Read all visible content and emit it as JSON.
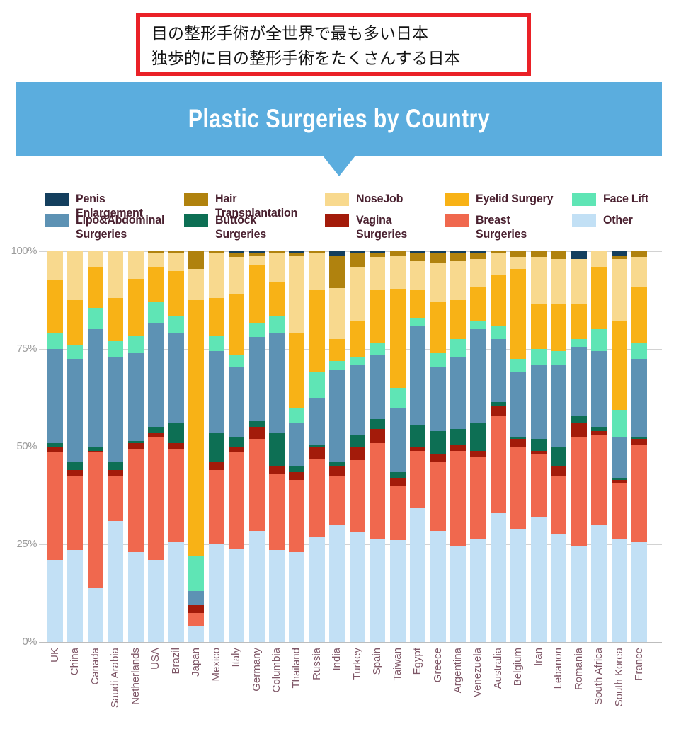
{
  "annotation": {
    "line1": "目の整形手術が全世界で最も多い日本",
    "line2": "独歩的に目の整形手術をたくさんする日本"
  },
  "header": {
    "title": "Plastic Surgeries by Country"
  },
  "colors": {
    "banner_blue": "#5badde",
    "annotation_red": "#ea2127",
    "legend_text": "#4a2130",
    "axis_tick_text": "#9b9b9b",
    "country_label_text": "#7e5666",
    "gridline": "#d2d2d2"
  },
  "legend": {
    "rows": [
      [
        "Penis Enlargement",
        "Hair Transplantation",
        "NoseJob",
        "Eyelid Surgery",
        "Face Lift"
      ],
      [
        "Lipo&Abdominal Surgeries",
        "Buttock Surgeries",
        "Vagina Surgeries",
        "Breast Surgeries",
        "Other"
      ]
    ]
  },
  "chart_data": {
    "type": "bar",
    "subtype": "stacked-100-percent",
    "title": "Plastic Surgeries by Country",
    "xlabel": "",
    "ylabel": "",
    "ylim": [
      0,
      100
    ],
    "grid": true,
    "legend_position": "top",
    "y_ticks": [
      "0%",
      "25%",
      "50%",
      "75%",
      "100%"
    ],
    "y_tick_values": [
      0,
      25,
      50,
      75,
      100
    ],
    "categories": [
      "UK",
      "China",
      "Canada",
      "Saudi Arabia",
      "Netherlands",
      "USA",
      "Brazil",
      "Japan",
      "Mexico",
      "Italy",
      "Germany",
      "Columbia",
      "Thailand",
      "Russia",
      "India",
      "Turkey",
      "Spain",
      "Taiwan",
      "Egypt",
      "Greece",
      "Argentina",
      "Venezuela",
      "Australia",
      "Belgium",
      "Iran",
      "Lebanon",
      "Romania",
      "South Africa",
      "South Korea",
      "France"
    ],
    "stack_order_note": "series listed bottom-to-top of each bar; values are percent of total",
    "series": [
      {
        "name": "Other",
        "color": "#c2e0f5",
        "values": [
          21,
          23.5,
          14,
          31,
          23,
          21,
          25.5,
          4,
          25,
          24,
          28.5,
          23.5,
          23,
          27,
          30,
          28,
          26.5,
          26,
          34.5,
          28.5,
          24.5,
          26.5,
          33,
          29,
          32,
          27.5,
          24.5,
          30,
          26.5,
          25.5
        ]
      },
      {
        "name": "Breast Surgeries",
        "color": "#f0684e",
        "values": [
          27.5,
          19,
          34.5,
          11.5,
          26.5,
          31.5,
          24,
          3.5,
          19,
          24.5,
          23.5,
          19.5,
          18.5,
          20,
          12.5,
          18.5,
          24.5,
          14,
          14.5,
          17.5,
          24.5,
          21,
          25,
          21,
          16,
          15,
          28,
          23,
          14,
          25
        ]
      },
      {
        "name": "Vagina Surgeries",
        "color": "#a31b0a",
        "values": [
          1.5,
          1.5,
          0.5,
          1.5,
          1.5,
          1,
          1.5,
          2,
          2,
          1.5,
          3,
          2,
          2,
          3,
          2.5,
          3.5,
          3.5,
          2,
          1,
          2,
          1.5,
          1.5,
          2.5,
          2,
          1,
          2.5,
          3.5,
          1,
          1,
          1.5
        ]
      },
      {
        "name": "Buttock Surgeries",
        "color": "#0d6f54",
        "values": [
          1,
          2,
          1,
          2,
          0.5,
          1.5,
          5,
          0,
          7.5,
          2.5,
          1.5,
          8.5,
          1.5,
          0.5,
          1,
          3,
          2.5,
          1.5,
          5.5,
          6,
          4,
          7,
          1,
          0.5,
          3,
          5,
          2,
          1,
          0.5,
          0.5
        ]
      },
      {
        "name": "Lipo&Abdominal Surgeries",
        "color": "#5d92b4",
        "values": [
          24,
          26.5,
          30,
          27,
          22.5,
          26.5,
          23,
          3.5,
          21,
          18,
          21.5,
          25.5,
          11,
          12,
          23.5,
          18,
          16.5,
          16.5,
          25.5,
          16.5,
          18.5,
          24,
          16,
          16.5,
          19,
          21,
          17.5,
          19.5,
          10.5,
          20
        ]
      },
      {
        "name": "Face Lift",
        "color": "#5fe5b5",
        "values": [
          4,
          3.5,
          5.5,
          4,
          4.5,
          5.5,
          4.5,
          9,
          4,
          3,
          3.5,
          4.5,
          4,
          6.5,
          2.5,
          2,
          3,
          5,
          2,
          3.5,
          4.5,
          2,
          3.5,
          3.5,
          4,
          3.5,
          2,
          5.5,
          7,
          4
        ]
      },
      {
        "name": "Eyelid Surgery",
        "color": "#f8b216",
        "values": [
          13.5,
          11.5,
          10.5,
          11,
          14.5,
          9,
          11.5,
          65.5,
          9.5,
          15.5,
          15,
          8.5,
          19,
          21,
          5.5,
          9,
          13.5,
          25.5,
          7,
          13,
          10,
          9,
          13,
          23,
          11.5,
          12,
          9,
          16,
          22.5,
          14.5
        ]
      },
      {
        "name": "NoseJob",
        "color": "#f8d98e",
        "values": [
          7.5,
          12.5,
          4,
          12,
          7,
          3.5,
          4.5,
          8,
          11.5,
          9.5,
          2.5,
          7.5,
          20,
          9.5,
          13,
          14,
          8.5,
          8.5,
          7.5,
          10,
          10,
          7,
          5.5,
          3,
          12,
          11.5,
          11.5,
          4,
          16,
          7.5
        ]
      },
      {
        "name": "Hair Transplantation",
        "color": "#b0820e",
        "values": [
          0,
          0,
          0,
          0,
          0,
          0.5,
          0.5,
          4.5,
          0.5,
          1,
          0.5,
          0.5,
          0.5,
          0.5,
          8.5,
          3.5,
          1,
          1,
          2,
          2.5,
          2,
          1.5,
          0.5,
          1.5,
          1.5,
          2,
          0,
          0,
          1,
          1.5
        ]
      },
      {
        "name": "Penis Enlargement",
        "color": "#143f5e",
        "values": [
          0,
          0,
          0,
          0,
          0,
          0,
          0,
          0,
          0,
          0.5,
          0.5,
          0,
          0.5,
          0,
          1,
          0.5,
          0.5,
          0,
          0.5,
          0.5,
          0.5,
          0.5,
          0,
          0,
          0,
          0,
          2,
          0,
          1,
          0
        ]
      }
    ]
  }
}
